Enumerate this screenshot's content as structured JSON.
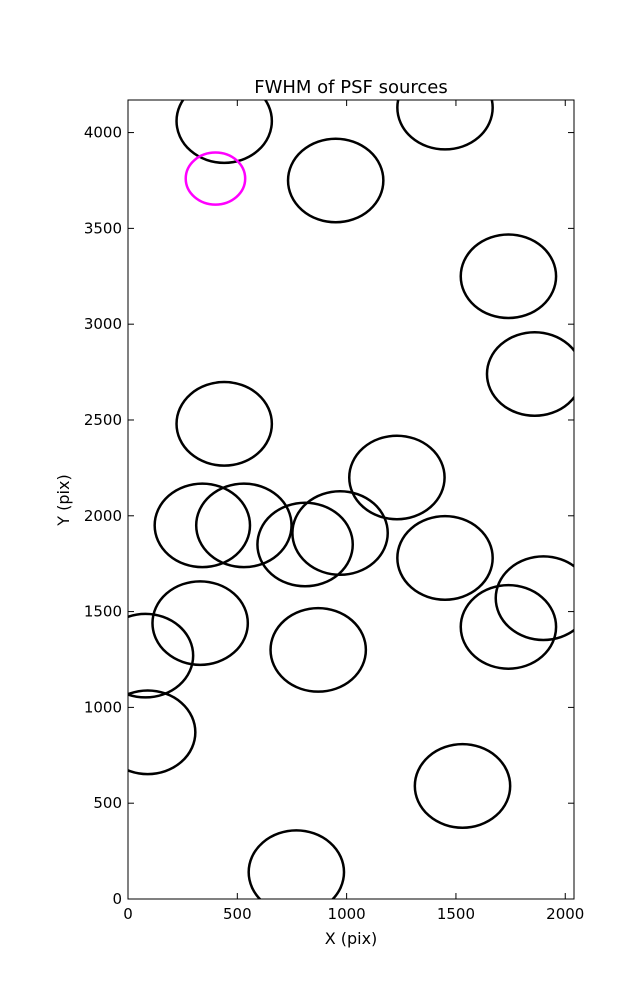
{
  "chart_data": {
    "type": "scatter",
    "title": "FWHM of PSF sources",
    "xlabel": "X (pix)",
    "ylabel": "Y (pix)",
    "xlim": [
      0,
      2040
    ],
    "ylim": [
      0,
      4170
    ],
    "xticks": [
      0,
      500,
      1000,
      1500,
      2000
    ],
    "yticks": [
      0,
      500,
      1000,
      1500,
      2000,
      2500,
      3000,
      3500,
      4000
    ],
    "grid": false,
    "marker": "circle",
    "default_color": "#000000",
    "highlight_color": "#ff00ff",
    "sources": [
      {
        "x": 440,
        "y": 4060,
        "r": 218,
        "highlight": false
      },
      {
        "x": 1450,
        "y": 4130,
        "r": 218,
        "highlight": false
      },
      {
        "x": 400,
        "y": 3760,
        "r": 136,
        "highlight": true
      },
      {
        "x": 950,
        "y": 3750,
        "r": 218,
        "highlight": false
      },
      {
        "x": 1740,
        "y": 3250,
        "r": 218,
        "highlight": false
      },
      {
        "x": 1860,
        "y": 2740,
        "r": 218,
        "highlight": false
      },
      {
        "x": 440,
        "y": 2480,
        "r": 218,
        "highlight": false
      },
      {
        "x": 1230,
        "y": 2200,
        "r": 218,
        "highlight": false
      },
      {
        "x": 340,
        "y": 1950,
        "r": 218,
        "highlight": false
      },
      {
        "x": 530,
        "y": 1950,
        "r": 218,
        "highlight": false
      },
      {
        "x": 810,
        "y": 1850,
        "r": 218,
        "highlight": false
      },
      {
        "x": 970,
        "y": 1910,
        "r": 218,
        "highlight": false
      },
      {
        "x": 1450,
        "y": 1780,
        "r": 218,
        "highlight": false
      },
      {
        "x": 1900,
        "y": 1570,
        "r": 218,
        "highlight": false
      },
      {
        "x": 330,
        "y": 1440,
        "r": 218,
        "highlight": false
      },
      {
        "x": 1740,
        "y": 1420,
        "r": 218,
        "highlight": false
      },
      {
        "x": 80,
        "y": 1270,
        "r": 218,
        "highlight": false
      },
      {
        "x": 870,
        "y": 1300,
        "r": 218,
        "highlight": false
      },
      {
        "x": 90,
        "y": 870,
        "r": 218,
        "highlight": false
      },
      {
        "x": 1530,
        "y": 590,
        "r": 218,
        "highlight": false
      },
      {
        "x": 770,
        "y": 140,
        "r": 218,
        "highlight": false
      }
    ]
  }
}
